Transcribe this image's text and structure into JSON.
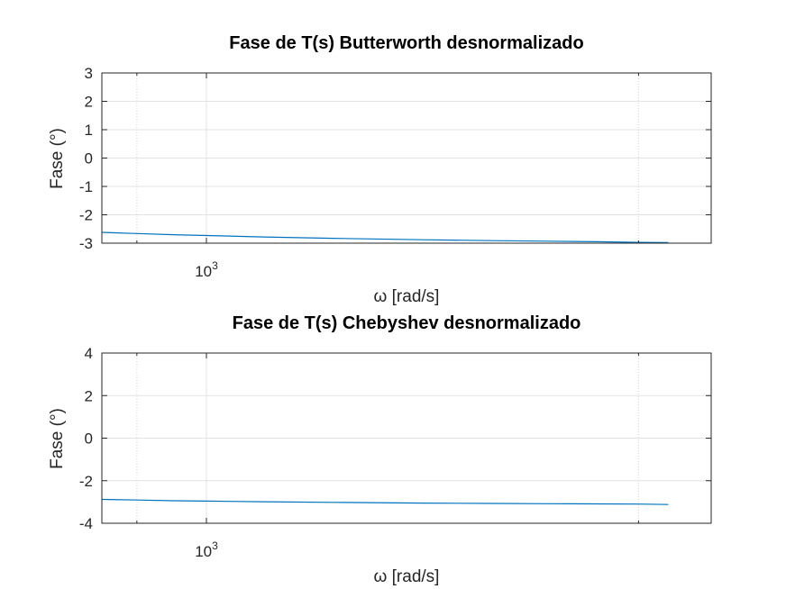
{
  "chart_data": [
    {
      "type": "line",
      "title": "Fase de T(s) Butterworth desnormalizado",
      "xlabel": "ω [rad/s]",
      "ylabel": "Fase (°)",
      "xscale": "log",
      "xlim": [
        715,
        5050
      ],
      "ylim": [
        -3,
        3
      ],
      "yticks": [
        "-3",
        "-2",
        "-1",
        "0",
        "1",
        "2",
        "3"
      ],
      "xtick_major": [
        {
          "value": 1000,
          "base": "10",
          "exp": "3"
        }
      ],
      "xtick_minor": [
        800,
        4000
      ],
      "grid": true,
      "series": [
        {
          "color": "#0072bd",
          "x": [
            715,
            800,
            900,
            1000,
            1200,
            1500,
            2000,
            2500,
            3000,
            3500,
            4000,
            4400
          ],
          "y": [
            -2.62,
            -2.66,
            -2.7,
            -2.73,
            -2.78,
            -2.83,
            -2.88,
            -2.91,
            -2.93,
            -2.95,
            -2.97,
            -2.98
          ]
        }
      ]
    },
    {
      "type": "line",
      "title": "Fase de T(s) Chebyshev desnormalizado",
      "xlabel": "ω [rad/s]",
      "ylabel": "Fase (°)",
      "xscale": "log",
      "xlim": [
        715,
        5050
      ],
      "ylim": [
        -4,
        4
      ],
      "yticks": [
        "-4",
        "-2",
        "0",
        "2",
        "4"
      ],
      "xtick_major": [
        {
          "value": 1000,
          "base": "10",
          "exp": "3"
        }
      ],
      "xtick_minor": [
        800,
        4000
      ],
      "grid": true,
      "series": [
        {
          "color": "#0072bd",
          "x": [
            715,
            800,
            900,
            1000,
            1200,
            1500,
            2000,
            2500,
            3000,
            3500,
            4000,
            4400
          ],
          "y": [
            -2.88,
            -2.91,
            -2.94,
            -2.96,
            -2.99,
            -3.02,
            -3.05,
            -3.07,
            -3.08,
            -3.09,
            -3.1,
            -3.12
          ]
        }
      ]
    }
  ]
}
